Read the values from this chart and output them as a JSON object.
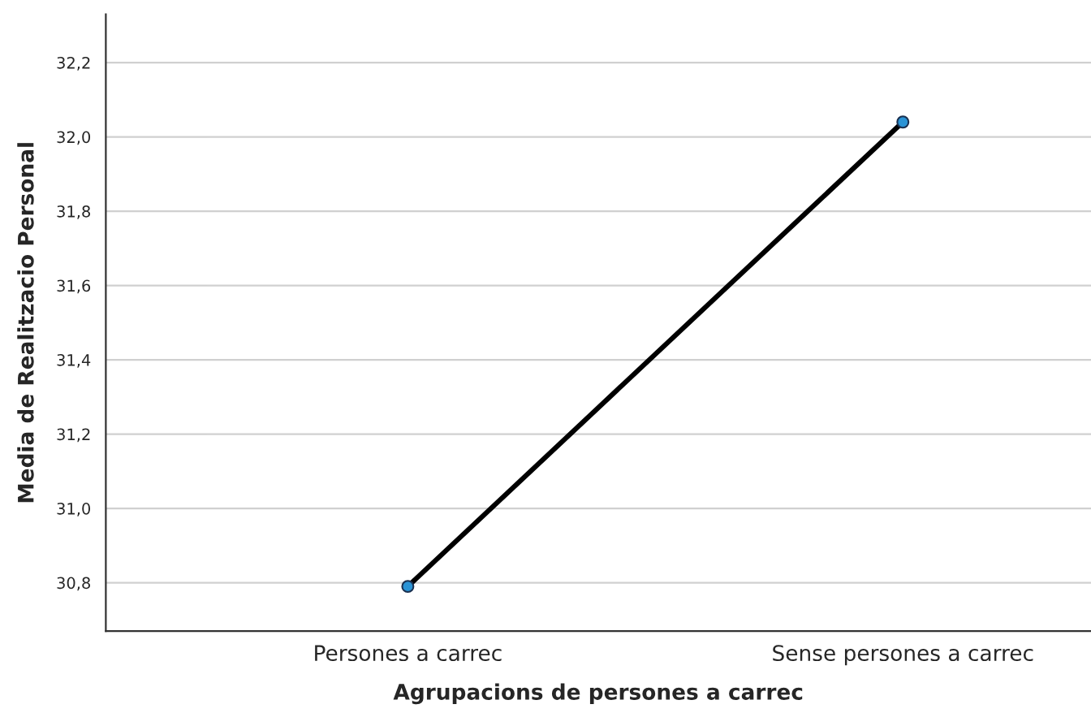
{
  "chart_data": {
    "type": "line",
    "xlabel": "Agrupacions de persones a carrec",
    "ylabel": "Media de Realitzacio Personal",
    "categories": [
      "Persones a carrec",
      "Sense persones a carrec"
    ],
    "series": [
      {
        "color": "#000000",
        "values": [
          30.79,
          32.04
        ]
      }
    ],
    "ylim": [
      30.67,
      32.33
    ],
    "yticks": [
      {
        "value": 30.8,
        "label": "30,8"
      },
      {
        "value": 31.0,
        "label": "31,0"
      },
      {
        "value": 31.2,
        "label": "31,2"
      },
      {
        "value": 31.4,
        "label": "31,4"
      },
      {
        "value": 31.6,
        "label": "31,6"
      },
      {
        "value": 31.8,
        "label": "31,8"
      },
      {
        "value": 32.0,
        "label": "32,0"
      },
      {
        "value": 32.2,
        "label": "32,2"
      }
    ],
    "grid": "y",
    "marker": "circle",
    "line_style": "solid",
    "legend": false
  }
}
